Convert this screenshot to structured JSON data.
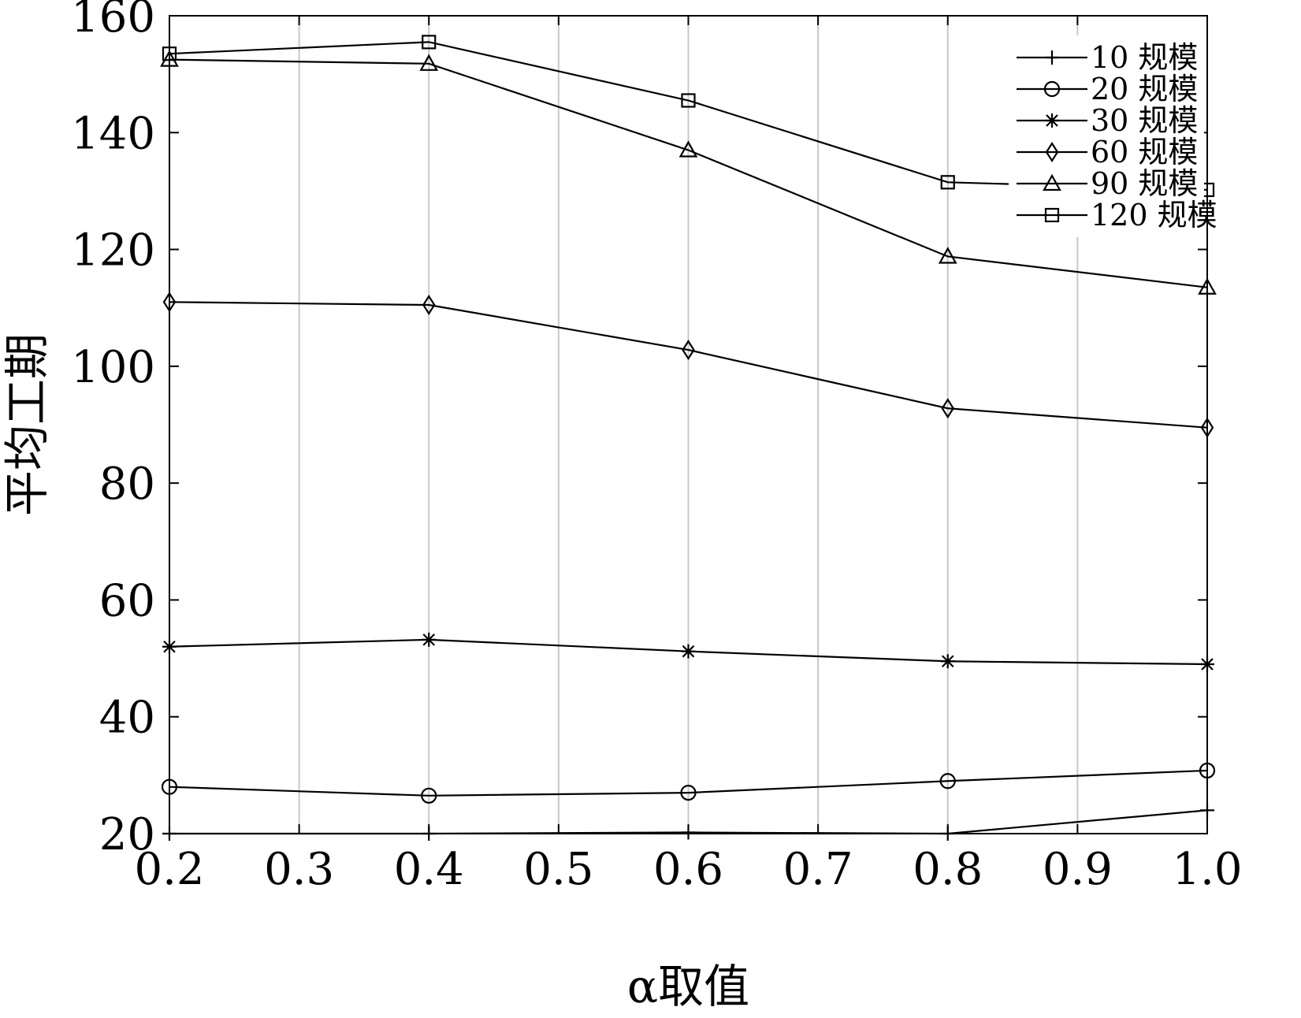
{
  "chart_data": {
    "type": "line",
    "title": "",
    "xlabel": "α取值",
    "ylabel": "平均工期",
    "x": [
      0.2,
      0.4,
      0.6,
      0.8,
      1.0
    ],
    "xlim": [
      0.2,
      1.0
    ],
    "ylim": [
      20,
      160
    ],
    "xticks": [
      "0.2",
      "0.3",
      "0.4",
      "0.5",
      "0.6",
      "0.7",
      "0.8",
      "0.9",
      "1.0"
    ],
    "yticks": [
      "20",
      "40",
      "60",
      "80",
      "100",
      "120",
      "140",
      "160"
    ],
    "grid": "vertical",
    "legend_position": "top-right",
    "series": [
      {
        "name": "10 规模",
        "marker": "plus",
        "values": [
          20.0,
          20.0,
          20.2,
          20.0,
          24.0
        ]
      },
      {
        "name": "20 规模",
        "marker": "circle",
        "values": [
          28.0,
          26.5,
          27.0,
          29.0,
          30.8
        ]
      },
      {
        "name": "30 规模",
        "marker": "star",
        "values": [
          52.0,
          53.2,
          51.2,
          49.5,
          49.0
        ]
      },
      {
        "name": "60 规模",
        "marker": "diamond",
        "values": [
          111.0,
          110.5,
          102.8,
          92.8,
          89.5
        ]
      },
      {
        "name": "90 规模",
        "marker": "triangle",
        "values": [
          152.5,
          151.8,
          137.0,
          118.8,
          113.5
        ]
      },
      {
        "name": "120 规模",
        "marker": "square",
        "values": [
          153.5,
          155.5,
          145.5,
          131.5,
          130.2
        ]
      }
    ]
  }
}
